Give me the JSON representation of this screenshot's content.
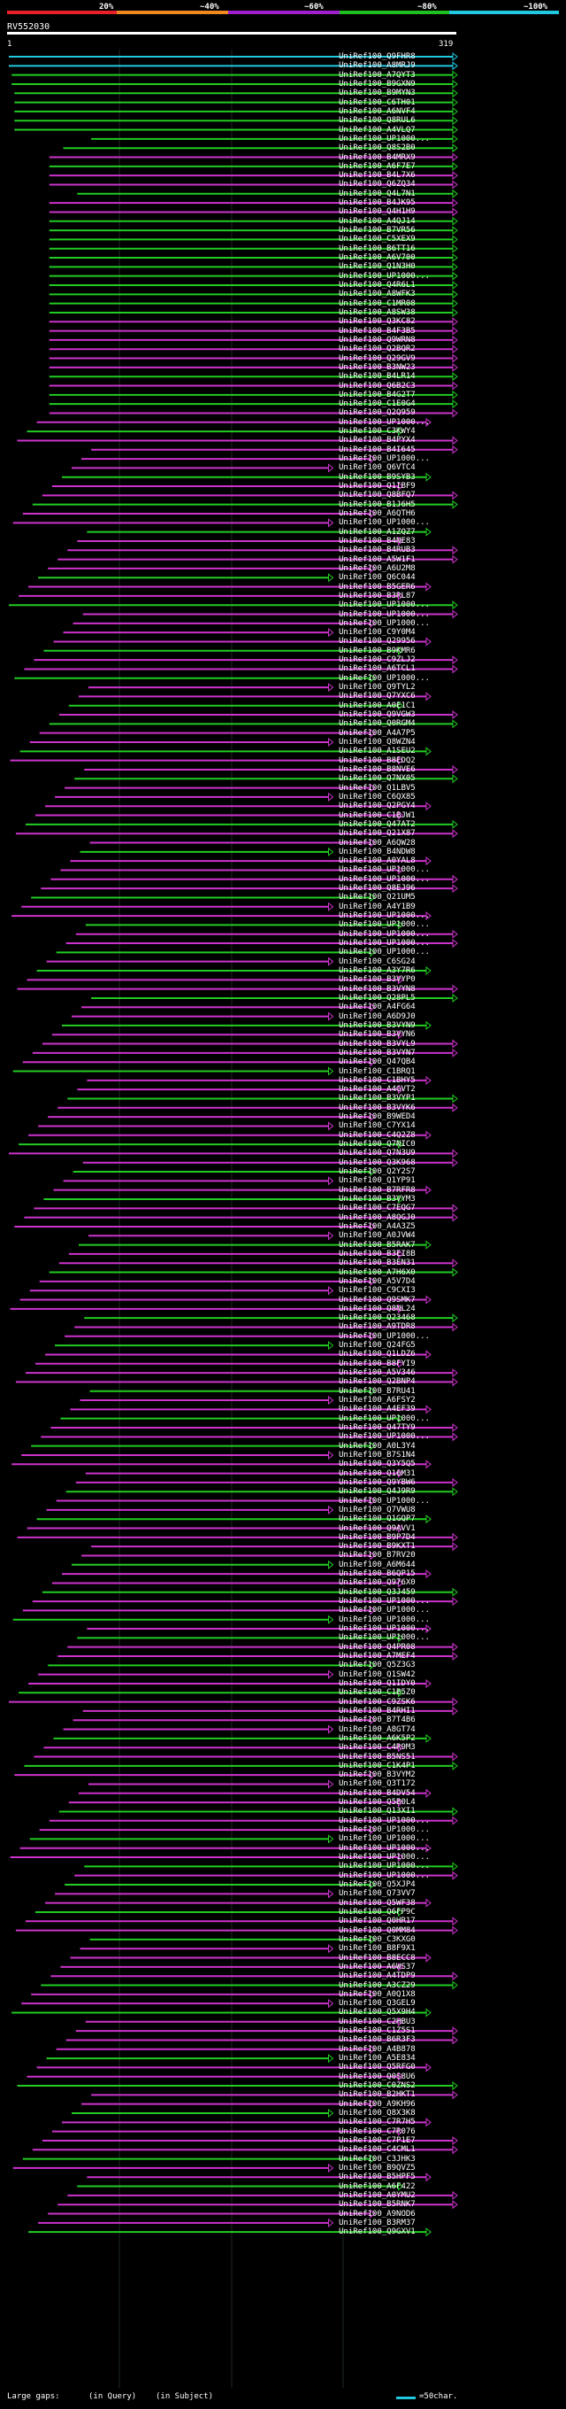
{
  "scale_labels": [
    "20%",
    "~40%",
    "~60%",
    "~80%",
    "~100%"
  ],
  "colors": {
    "band_red": "#e8202a",
    "band_orange": "#f08a20",
    "band_purple": "#a020d0",
    "band_green": "#20c020",
    "band_cyan": "#20c8e0",
    "line_cyan": "#20c8e0",
    "line_green": "#22cc22",
    "line_magenta": "#cc33cc",
    "text": "#ffffff",
    "grid": "#1e2a1e",
    "background": "#000000"
  },
  "query": {
    "title": "RV552030",
    "start": "1",
    "end": "319"
  },
  "legend": {
    "large_gaps": "Large gaps:",
    "query_gap": "(in Query)",
    "subject_gap": "(in Subject)",
    "scale": "=50char."
  },
  "subject_ids": [
    "UniRef100_Q9FHR8",
    "UniRef100_A8MRJ9",
    "UniRef100_A7QYT3",
    "UniRef100_B9GXN9",
    "UniRef100_B9MYN3",
    "UniRef100_C6TH01",
    "UniRef100_A6NVF4",
    "UniRef100_Q8RUL6",
    "UniRef100_A4VLQ7",
    "UniRef100_UP1000...",
    "UniRef100_Q8S2B0",
    "UniRef100_B4MRX9",
    "UniRef100_A6F7E7",
    "UniRef100_B4L7X6",
    "UniRef100_Q6ZQ34",
    "UniRef100_Q4L7N1",
    "UniRef100_B4JK95",
    "UniRef100_Q4H1H9",
    "UniRef100_A4QJ14",
    "UniRef100_B7VR56",
    "UniRef100_C5XEX9",
    "UniRef100_B6TT16",
    "UniRef100_A6V700",
    "UniRef100_Q1N3H0",
    "UniRef100_UP1000...",
    "UniRef100_Q4R6L1",
    "UniRef100_A8WFK3",
    "UniRef100_C1MR08",
    "UniRef100_A8SW38",
    "UniRef100_Q3KC82",
    "UniRef100_B4F3B5",
    "UniRef100_Q9WRN8",
    "UniRef100_Q2BQR2",
    "UniRef100_Q29GV9",
    "UniRef100_B3NW23",
    "UniRef100_B4LR14",
    "UniRef100_Q6B2C3",
    "UniRef100_B4G2T7",
    "UniRef100_C1E0G4",
    "UniRef100_Q2Q959",
    "UniRef100_UP1000...",
    "UniRef100_C3KWY4",
    "UniRef100_B4PYX4",
    "UniRef100_B4I645",
    "UniRef100_UP1000...",
    "UniRef100_Q6VTC4",
    "UniRef100_B9SYB3",
    "UniRef100_Q1IBF9",
    "UniRef100_Q8BFQ7",
    "UniRef100_B1J6H5",
    "UniRef100_A6QTH6",
    "UniRef100_UP1000...",
    "UniRef100_A1ZQZ7",
    "UniRef100_B4NE83",
    "UniRef100_B4RUB3",
    "UniRef100_A5W1F1",
    "UniRef100_A6U2M8",
    "UniRef100_Q6C044",
    "UniRef100_B5GER6",
    "UniRef100_B3RL87",
    "UniRef100_UP1000...",
    "UniRef100_UP1000...",
    "UniRef100_UP1000...",
    "UniRef100_C9Y0M4",
    "UniRef100_Q29956",
    "UniRef100_B9KMR6",
    "UniRef100_C9ZLJ2",
    "UniRef100_A6TCL1",
    "UniRef100_UP1000...",
    "UniRef100_Q9TYL2",
    "UniRef100_Q7YXC6",
    "UniRef100_A0E1C1",
    "UniRef100_Q9VGW3",
    "UniRef100_Q0RGM4",
    "UniRef100_A4A7P5",
    "UniRef100_Q8WZN4",
    "UniRef100_A1SEU2",
    "UniRef100_B8EDQ2",
    "UniRef100_B8NVE6",
    "UniRef100_Q7NX05",
    "UniRef100_Q1LBV5",
    "UniRef100_C6QX85",
    "UniRef100_Q2PGY4",
    "UniRef100_C1BJW1",
    "UniRef100_Q47AT2",
    "UniRef100_Q21X87",
    "UniRef100_A6QW28",
    "UniRef100_B4NDW8",
    "UniRef100_A0YAL8",
    "UniRef100_UP1000...",
    "UniRef100_UP1000...",
    "UniRef100_Q8EJ96",
    "UniRef100_Q21UM5",
    "UniRef100_A4Y1B9",
    "UniRef100_UP1000...",
    "UniRef100_UP1000...",
    "UniRef100_UP1000...",
    "UniRef100_UP1000...",
    "UniRef100_UP1000...",
    "UniRef100_C6SG24",
    "UniRef100_A3Y7R6",
    "UniRef100_B3VYP0",
    "UniRef100_B3VYN8",
    "UniRef100_Q28PL5",
    "UniRef100_A4FG64",
    "UniRef100_A6D9J0",
    "UniRef100_B3VYN9",
    "UniRef100_B3VYN6",
    "UniRef100_B3VYL9",
    "UniRef100_B3VYN7",
    "UniRef100_Q47QB4",
    "UniRef100_C1BRQ1",
    "UniRef100_C1BHY5",
    "UniRef100_A4GVT2",
    "UniRef100_B3VYP1",
    "UniRef100_B3VYK6",
    "UniRef100_B9WED4",
    "UniRef100_C7YX14",
    "UniRef100_C4Q2Z8",
    "UniRef100_Q7NIC0",
    "UniRef100_Q7N3U9",
    "UniRef100_Q3K968",
    "UniRef100_Q2Y2S7",
    "UniRef100_Q1YP91",
    "UniRef100_B7RFR8",
    "UniRef100_B3VYM3",
    "UniRef100_C7EQG7",
    "UniRef100_A8QGJ0",
    "UniRef100_A4A3Z5",
    "UniRef100_A0JVW4",
    "UniRef100_B5RAK7",
    "UniRef100_B3EI8B",
    "UniRef100_B3EN31",
    "UniRef100_A7H6X0",
    "UniRef100_A5V7D4",
    "UniRef100_C9CXI3",
    "UniRef100_Q9SMK7",
    "UniRef100_Q8NL24",
    "UniRef100_Q23468",
    "UniRef100_A9TDR8",
    "UniRef100_UP1000...",
    "UniRef100_Q24FG5",
    "UniRef100_Q1LDZ6",
    "UniRef100_B8FYI9",
    "UniRef100_A5V346",
    "UniRef100_Q2BNP4",
    "UniRef100_B7RU41",
    "UniRef100_A6FSY2",
    "UniRef100_A4EF39",
    "UniRef100_UP1000...",
    "UniRef100_Q47TY9",
    "UniRef100_UP1000...",
    "UniRef100_A0L3Y4",
    "UniRef100_B7S1N4",
    "UniRef100_Q3Y5Q5",
    "UniRef100_Q16M31",
    "UniRef100_Q9YBW6",
    "UniRef100_Q4J9R9",
    "UniRef100_UP1000...",
    "UniRef100_Q7VWU8",
    "UniRef100_Q1GQP7",
    "UniRef100_Q9AVV1",
    "UniRef100_B9P7D4",
    "UniRef100_B9KXT1",
    "UniRef100_B7RV20",
    "UniRef100_A6M644",
    "UniRef100_B6QP15",
    "UniRef100_Q976X0",
    "UniRef100_Q3J459",
    "UniRef100_UP1000...",
    "UniRef100_UP1000...",
    "UniRef100_UP1000...",
    "UniRef100_UP1000...",
    "UniRef100_UP1000...",
    "UniRef100_Q4PR08",
    "UniRef100_A7MEF4",
    "UniRef100_Q5Z3G3",
    "UniRef100_Q1SW42",
    "UniRef100_Q1IDY0",
    "UniRef100_C1B5Z0",
    "UniRef100_C9ZSK6",
    "UniRef100_B4RHI1",
    "UniRef100_B7T4B6",
    "UniRef100_A8GT74",
    "UniRef100_A6K5P2",
    "UniRef100_C4R9M3",
    "UniRef100_B5NS51",
    "UniRef100_C1K4P1",
    "UniRef100_B3VYM2",
    "UniRef100_Q3T172",
    "UniRef100_B4DV54",
    "UniRef100_Q5B0L4",
    "UniRef100_Q13XI1",
    "UniRef100_UP1000...",
    "UniRef100_UP1000...",
    "UniRef100_UP1000...",
    "UniRef100_UP1000...",
    "UniRef100_UP1000...",
    "UniRef100_UP1000...",
    "UniRef100_UP1000...",
    "UniRef100_Q5XJP4",
    "UniRef100_Q73VV7",
    "UniRef100_Q5WF38",
    "UniRef100_Q6FP9C",
    "UniRef100_Q0HR17",
    "UniRef100_Q0MM84",
    "UniRef100_C3KXG0",
    "UniRef100_B8F9X1",
    "UniRef100_B8ECC8",
    "UniRef100_A6WS37",
    "UniRef100_A4TDP9",
    "UniRef100_A3CZ29",
    "UniRef100_A0Q1X8",
    "UniRef100_Q3GEL9",
    "UniRef100_Q5X9H4",
    "UniRef100_C2HBU3",
    "UniRef100_C1Z5S1",
    "UniRef100_B6R3F3",
    "UniRef100_A4B878",
    "UniRef100_A5E834",
    "UniRef100_Q5RFG0",
    "UniRef100_Q0S8U6",
    "UniRef100_C0ZNS2",
    "UniRef100_B2HKT1",
    "UniRef100_A9KH96",
    "UniRef100_Q8X3K8",
    "UniRef100_C7R7H5",
    "UniRef100_C7R076",
    "UniRef100_C7P1E7",
    "UniRef100_C4CML1",
    "UniRef100_C3JHK3",
    "UniRef100_B9QVZ5",
    "UniRef100_B5HPF5",
    "UniRef100_A6F422",
    "UniRef100_A0YMU2",
    "UniRef100_B5RNK7",
    "UniRef100_A9NOD6",
    "UniRef100_B3RM37",
    "UniRef100_Q9GXV1"
  ],
  "chart_data": {
    "type": "alignment-overview",
    "title": "RV552030",
    "query_range": [
      1,
      319
    ],
    "identity_scale": [
      "20%",
      "~40%",
      "~60%",
      "~80%",
      "~100%"
    ],
    "hits": [
      {
        "id": "UniRef100_Q9FHR8",
        "start": 1,
        "end": 319,
        "color": "cyan"
      },
      {
        "id": "UniRef100_A8MRJ9",
        "start": 1,
        "end": 319,
        "color": "cyan"
      },
      {
        "id": "UniRef100_A7QYT3",
        "start": 3,
        "end": 319,
        "color": "green"
      },
      {
        "id": "UniRef100_B9GXN9",
        "start": 3,
        "end": 319,
        "color": "green"
      },
      {
        "id": "UniRef100_B9MYN3",
        "start": 5,
        "end": 319,
        "color": "green"
      },
      {
        "id": "UniRef100_C6TH01",
        "start": 5,
        "end": 319,
        "color": "green"
      },
      {
        "id": "UniRef100_A6NVF4",
        "start": 5,
        "end": 319,
        "color": "green"
      },
      {
        "id": "UniRef100_Q8RUL6",
        "start": 5,
        "end": 319,
        "color": "green"
      },
      {
        "id": "UniRef100_A4VLQ7",
        "start": 5,
        "end": 319,
        "color": "green"
      },
      {
        "id": "UniRef100_UP1000...",
        "start": 60,
        "end": 319,
        "color": "green"
      },
      {
        "id": "UniRef100_Q8S2B0",
        "start": 40,
        "end": 319,
        "color": "green"
      },
      {
        "id": "UniRef100_B4MRX9",
        "start": 30,
        "end": 319,
        "color": "magenta"
      },
      {
        "id": "UniRef100_A6F7E7",
        "start": 30,
        "end": 319,
        "color": "green"
      },
      {
        "id": "UniRef100_B4L7X6",
        "start": 30,
        "end": 319,
        "color": "magenta"
      },
      {
        "id": "UniRef100_Q6ZQ34",
        "start": 30,
        "end": 319,
        "color": "magenta"
      },
      {
        "id": "UniRef100_Q4L7N1",
        "start": 50,
        "end": 319,
        "color": "green"
      },
      {
        "id": "UniRef100_B4JK95",
        "start": 30,
        "end": 319,
        "color": "magenta"
      },
      {
        "id": "UniRef100_Q4H1H9",
        "start": 30,
        "end": 319,
        "color": "magenta"
      },
      {
        "id": "UniRef100_A4QJ14",
        "start": 30,
        "end": 319,
        "color": "green"
      },
      {
        "id": "UniRef100_B7VR56",
        "start": 30,
        "end": 319,
        "color": "green"
      },
      {
        "id": "UniRef100_C5XEX9",
        "start": 30,
        "end": 319,
        "color": "green"
      },
      {
        "id": "UniRef100_B6TT16",
        "start": 30,
        "end": 319,
        "color": "green"
      },
      {
        "id": "UniRef100_A6V700",
        "start": 30,
        "end": 319,
        "color": "green"
      },
      {
        "id": "UniRef100_Q1N3H0",
        "start": 30,
        "end": 319,
        "color": "green"
      },
      {
        "id": "UniRef100_UP1000...",
        "start": 30,
        "end": 319,
        "color": "green"
      },
      {
        "id": "UniRef100_Q4R6L1",
        "start": 30,
        "end": 319,
        "color": "green"
      },
      {
        "id": "UniRef100_A8WFK3",
        "start": 30,
        "end": 319,
        "color": "green"
      },
      {
        "id": "UniRef100_C1MR08",
        "start": 30,
        "end": 319,
        "color": "green"
      },
      {
        "id": "UniRef100_A8SW38",
        "start": 30,
        "end": 319,
        "color": "green"
      },
      {
        "id": "UniRef100_Q3KC82",
        "start": 30,
        "end": 319,
        "color": "magenta"
      },
      {
        "id": "UniRef100_B4F3B5",
        "start": 30,
        "end": 319,
        "color": "magenta"
      },
      {
        "id": "UniRef100_Q9WRN8",
        "start": 30,
        "end": 319,
        "color": "magenta"
      },
      {
        "id": "UniRef100_Q2BQR2",
        "start": 30,
        "end": 319,
        "color": "magenta"
      },
      {
        "id": "UniRef100_Q29GV9",
        "start": 30,
        "end": 319,
        "color": "magenta"
      },
      {
        "id": "UniRef100_B3NW23",
        "start": 30,
        "end": 319,
        "color": "magenta"
      },
      {
        "id": "UniRef100_B4LR14",
        "start": 30,
        "end": 319,
        "color": "green"
      },
      {
        "id": "UniRef100_Q6B2C3",
        "start": 30,
        "end": 319,
        "color": "magenta"
      },
      {
        "id": "UniRef100_B4G2T7",
        "start": 30,
        "end": 319,
        "color": "green"
      },
      {
        "id": "UniRef100_C1E0G4",
        "start": 30,
        "end": 319,
        "color": "green"
      },
      {
        "id": "UniRef100_Q2Q959",
        "start": 30,
        "end": 319,
        "color": "magenta"
      }
    ]
  }
}
